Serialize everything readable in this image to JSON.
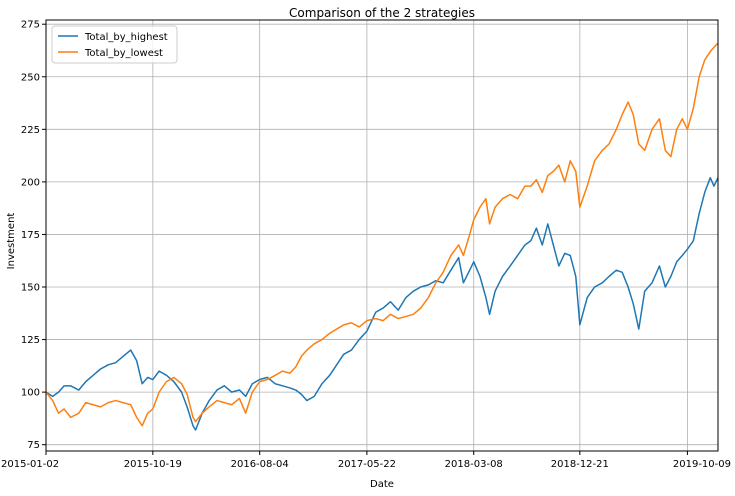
{
  "chart_data": {
    "type": "line",
    "title": "Comparison of the 2 strategies",
    "xlabel": "Date",
    "ylabel": "Investment",
    "x_tick_labels": [
      "2015-01-02",
      "2015-10-19",
      "2016-08-04",
      "2017-05-22",
      "2018-03-08",
      "2018-12-21",
      "2019-10-09"
    ],
    "x_range": [
      "2015-01-02",
      "2019-12-31"
    ],
    "ylim": [
      72,
      277
    ],
    "y_ticks": [
      75,
      100,
      125,
      150,
      175,
      200,
      225,
      250,
      275
    ],
    "grid": true,
    "legend_position": "top-left",
    "series": [
      {
        "name": "Total_by_highest",
        "color": "#1f77b4",
        "points": [
          [
            "2015-01-02",
            100
          ],
          [
            "2015-01-20",
            98
          ],
          [
            "2015-02-05",
            100
          ],
          [
            "2015-02-20",
            103
          ],
          [
            "2015-03-10",
            103
          ],
          [
            "2015-04-01",
            101
          ],
          [
            "2015-04-20",
            105
          ],
          [
            "2015-05-10",
            108
          ],
          [
            "2015-05-30",
            111
          ],
          [
            "2015-06-20",
            113
          ],
          [
            "2015-07-10",
            114
          ],
          [
            "2015-07-30",
            117
          ],
          [
            "2015-08-20",
            120
          ],
          [
            "2015-09-05",
            115
          ],
          [
            "2015-09-20",
            104
          ],
          [
            "2015-10-05",
            107
          ],
          [
            "2015-10-19",
            106
          ],
          [
            "2015-11-05",
            110
          ],
          [
            "2015-11-25",
            108
          ],
          [
            "2015-12-15",
            105
          ],
          [
            "2016-01-05",
            100
          ],
          [
            "2016-01-20",
            93
          ],
          [
            "2016-02-05",
            84
          ],
          [
            "2016-02-12",
            82
          ],
          [
            "2016-03-01",
            90
          ],
          [
            "2016-03-20",
            96
          ],
          [
            "2016-04-10",
            101
          ],
          [
            "2016-04-30",
            103
          ],
          [
            "2016-05-20",
            100
          ],
          [
            "2016-06-10",
            101
          ],
          [
            "2016-06-27",
            98
          ],
          [
            "2016-07-15",
            104
          ],
          [
            "2016-08-04",
            106
          ],
          [
            "2016-08-25",
            107
          ],
          [
            "2016-09-15",
            104
          ],
          [
            "2016-10-05",
            103
          ],
          [
            "2016-10-25",
            102
          ],
          [
            "2016-11-10",
            101
          ],
          [
            "2016-11-25",
            99
          ],
          [
            "2016-12-10",
            96
          ],
          [
            "2016-12-30",
            98
          ],
          [
            "2017-01-20",
            104
          ],
          [
            "2017-02-10",
            108
          ],
          [
            "2017-03-01",
            113
          ],
          [
            "2017-03-20",
            118
          ],
          [
            "2017-04-10",
            120
          ],
          [
            "2017-05-01",
            125
          ],
          [
            "2017-05-22",
            129
          ],
          [
            "2017-06-15",
            138
          ],
          [
            "2017-07-05",
            140
          ],
          [
            "2017-07-25",
            143
          ],
          [
            "2017-08-15",
            139
          ],
          [
            "2017-09-05",
            145
          ],
          [
            "2017-09-25",
            148
          ],
          [
            "2017-10-15",
            150
          ],
          [
            "2017-11-05",
            151
          ],
          [
            "2017-11-25",
            153
          ],
          [
            "2017-12-15",
            152
          ],
          [
            "2018-01-05",
            158
          ],
          [
            "2018-01-26",
            164
          ],
          [
            "2018-02-08",
            152
          ],
          [
            "2018-02-25",
            158
          ],
          [
            "2018-03-08",
            162
          ],
          [
            "2018-03-25",
            155
          ],
          [
            "2018-04-10",
            145
          ],
          [
            "2018-04-20",
            137
          ],
          [
            "2018-05-05",
            148
          ],
          [
            "2018-05-25",
            155
          ],
          [
            "2018-06-15",
            160
          ],
          [
            "2018-07-05",
            165
          ],
          [
            "2018-07-25",
            170
          ],
          [
            "2018-08-10",
            172
          ],
          [
            "2018-08-25",
            178
          ],
          [
            "2018-09-10",
            170
          ],
          [
            "2018-09-25",
            180
          ],
          [
            "2018-10-10",
            170
          ],
          [
            "2018-10-25",
            160
          ],
          [
            "2018-11-10",
            166
          ],
          [
            "2018-11-25",
            165
          ],
          [
            "2018-12-10",
            155
          ],
          [
            "2018-12-21",
            132
          ],
          [
            "2019-01-10",
            145
          ],
          [
            "2019-01-30",
            150
          ],
          [
            "2019-02-20",
            152
          ],
          [
            "2019-03-10",
            155
          ],
          [
            "2019-03-30",
            158
          ],
          [
            "2019-04-15",
            157
          ],
          [
            "2019-05-01",
            150
          ],
          [
            "2019-05-15",
            142
          ],
          [
            "2019-05-30",
            130
          ],
          [
            "2019-06-15",
            148
          ],
          [
            "2019-07-05",
            152
          ],
          [
            "2019-07-25",
            160
          ],
          [
            "2019-08-10",
            150
          ],
          [
            "2019-08-25",
            155
          ],
          [
            "2019-09-10",
            162
          ],
          [
            "2019-09-25",
            165
          ],
          [
            "2019-10-09",
            168
          ],
          [
            "2019-10-25",
            172
          ],
          [
            "2019-11-10",
            185
          ],
          [
            "2019-11-25",
            195
          ],
          [
            "2019-12-10",
            202
          ],
          [
            "2019-12-20",
            198
          ],
          [
            "2019-12-31",
            202
          ]
        ]
      },
      {
        "name": "Total_by_lowest",
        "color": "#ff7f0e",
        "points": [
          [
            "2015-01-02",
            100
          ],
          [
            "2015-01-20",
            96
          ],
          [
            "2015-02-05",
            90
          ],
          [
            "2015-02-20",
            92
          ],
          [
            "2015-03-10",
            88
          ],
          [
            "2015-04-01",
            90
          ],
          [
            "2015-04-20",
            95
          ],
          [
            "2015-05-10",
            94
          ],
          [
            "2015-05-30",
            93
          ],
          [
            "2015-06-20",
            95
          ],
          [
            "2015-07-10",
            96
          ],
          [
            "2015-07-30",
            95
          ],
          [
            "2015-08-20",
            94
          ],
          [
            "2015-09-05",
            88
          ],
          [
            "2015-09-20",
            84
          ],
          [
            "2015-10-05",
            90
          ],
          [
            "2015-10-19",
            92
          ],
          [
            "2015-11-05",
            100
          ],
          [
            "2015-11-25",
            105
          ],
          [
            "2015-12-15",
            107
          ],
          [
            "2016-01-05",
            104
          ],
          [
            "2016-01-20",
            99
          ],
          [
            "2016-02-05",
            88
          ],
          [
            "2016-02-12",
            86
          ],
          [
            "2016-03-01",
            90
          ],
          [
            "2016-03-20",
            93
          ],
          [
            "2016-04-10",
            96
          ],
          [
            "2016-04-30",
            95
          ],
          [
            "2016-05-20",
            94
          ],
          [
            "2016-06-10",
            97
          ],
          [
            "2016-06-27",
            90
          ],
          [
            "2016-07-15",
            100
          ],
          [
            "2016-08-04",
            105
          ],
          [
            "2016-08-25",
            106
          ],
          [
            "2016-09-15",
            108
          ],
          [
            "2016-10-05",
            110
          ],
          [
            "2016-10-25",
            109
          ],
          [
            "2016-11-10",
            112
          ],
          [
            "2016-11-25",
            117
          ],
          [
            "2016-12-10",
            120
          ],
          [
            "2016-12-30",
            123
          ],
          [
            "2017-01-20",
            125
          ],
          [
            "2017-02-10",
            128
          ],
          [
            "2017-03-01",
            130
          ],
          [
            "2017-03-20",
            132
          ],
          [
            "2017-04-10",
            133
          ],
          [
            "2017-05-01",
            131
          ],
          [
            "2017-05-22",
            134
          ],
          [
            "2017-06-15",
            135
          ],
          [
            "2017-07-05",
            134
          ],
          [
            "2017-07-25",
            137
          ],
          [
            "2017-08-15",
            135
          ],
          [
            "2017-09-05",
            136
          ],
          [
            "2017-09-25",
            137
          ],
          [
            "2017-10-15",
            140
          ],
          [
            "2017-11-05",
            145
          ],
          [
            "2017-11-25",
            152
          ],
          [
            "2017-12-15",
            157
          ],
          [
            "2018-01-05",
            165
          ],
          [
            "2018-01-26",
            170
          ],
          [
            "2018-02-08",
            165
          ],
          [
            "2018-02-25",
            175
          ],
          [
            "2018-03-08",
            182
          ],
          [
            "2018-03-25",
            188
          ],
          [
            "2018-04-10",
            192
          ],
          [
            "2018-04-20",
            180
          ],
          [
            "2018-05-05",
            188
          ],
          [
            "2018-05-25",
            192
          ],
          [
            "2018-06-15",
            194
          ],
          [
            "2018-07-05",
            192
          ],
          [
            "2018-07-25",
            198
          ],
          [
            "2018-08-10",
            198
          ],
          [
            "2018-08-25",
            201
          ],
          [
            "2018-09-10",
            195
          ],
          [
            "2018-09-25",
            203
          ],
          [
            "2018-10-10",
            205
          ],
          [
            "2018-10-25",
            208
          ],
          [
            "2018-11-10",
            200
          ],
          [
            "2018-11-25",
            210
          ],
          [
            "2018-12-10",
            205
          ],
          [
            "2018-12-21",
            188
          ],
          [
            "2019-01-10",
            198
          ],
          [
            "2019-01-30",
            210
          ],
          [
            "2019-02-20",
            215
          ],
          [
            "2019-03-10",
            218
          ],
          [
            "2019-03-30",
            225
          ],
          [
            "2019-04-15",
            232
          ],
          [
            "2019-05-01",
            238
          ],
          [
            "2019-05-15",
            232
          ],
          [
            "2019-05-30",
            218
          ],
          [
            "2019-06-15",
            215
          ],
          [
            "2019-07-05",
            225
          ],
          [
            "2019-07-25",
            230
          ],
          [
            "2019-08-10",
            215
          ],
          [
            "2019-08-25",
            212
          ],
          [
            "2019-09-10",
            225
          ],
          [
            "2019-09-25",
            230
          ],
          [
            "2019-10-09",
            225
          ],
          [
            "2019-10-25",
            235
          ],
          [
            "2019-11-10",
            250
          ],
          [
            "2019-11-25",
            258
          ],
          [
            "2019-12-10",
            262
          ],
          [
            "2019-12-20",
            264
          ],
          [
            "2019-12-31",
            266
          ]
        ]
      }
    ]
  }
}
